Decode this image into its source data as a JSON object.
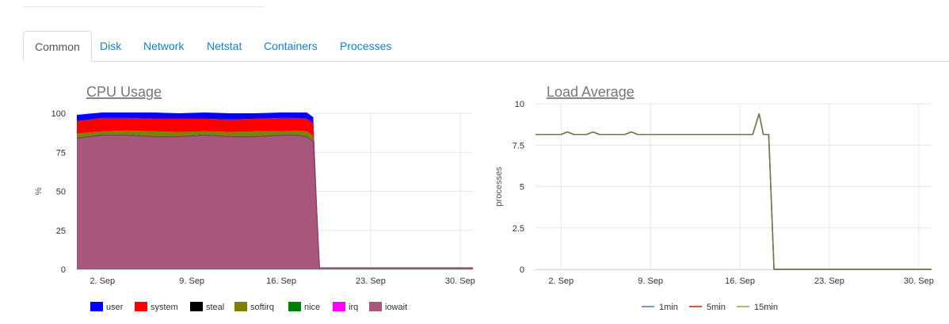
{
  "tabs": [
    {
      "label": "Common",
      "active": true
    },
    {
      "label": "Disk",
      "active": false
    },
    {
      "label": "Network",
      "active": false
    },
    {
      "label": "Netstat",
      "active": false
    },
    {
      "label": "Containers",
      "active": false
    },
    {
      "label": "Processes",
      "active": false
    }
  ],
  "chart_data": [
    {
      "type": "area",
      "stacked": true,
      "title": "CPU Usage",
      "xlabel": "",
      "ylabel": "%",
      "ylim": [
        0,
        100
      ],
      "yticks": [
        0,
        25,
        50,
        75,
        100
      ],
      "xlim": [
        "2023-08-31",
        "2023-10-01"
      ],
      "xticks": [
        {
          "date": "2023-09-02",
          "label": "2. Sep"
        },
        {
          "date": "2023-09-09",
          "label": "9. Sep"
        },
        {
          "date": "2023-09-16",
          "label": "16. Sep"
        },
        {
          "date": "2023-09-23",
          "label": "23. Sep"
        },
        {
          "date": "2023-09-30",
          "label": "30. Sep"
        }
      ],
      "grid": true,
      "legend": "bottom",
      "x": [
        "2023-08-31",
        "2023-09-02",
        "2023-09-04",
        "2023-09-06",
        "2023-09-08",
        "2023-09-10",
        "2023-09-12",
        "2023-09-14",
        "2023-09-16",
        "2023-09-17",
        "2023-09-18",
        "2023-09-18T12:00",
        "2023-09-19",
        "2023-09-22",
        "2023-09-26",
        "2023-09-30",
        "2023-10-01"
      ],
      "series": [
        {
          "name": "iowait",
          "color": "#a8567a",
          "values": [
            84,
            86,
            86,
            85,
            85,
            86,
            85,
            85,
            86,
            86,
            85,
            82,
            1,
            1,
            1,
            1,
            1
          ]
        },
        {
          "name": "irq",
          "color": "#ff00ff",
          "values": [
            0,
            0,
            0,
            0,
            0,
            0,
            0,
            0,
            0,
            0,
            0,
            0,
            0,
            0,
            0,
            0,
            0
          ]
        },
        {
          "name": "nice",
          "color": "#008000",
          "values": [
            0.5,
            0.5,
            0.5,
            0.5,
            0.5,
            0.5,
            0.5,
            0.5,
            0.5,
            0.5,
            0.5,
            0.5,
            0,
            0,
            0,
            0,
            0
          ]
        },
        {
          "name": "softirq",
          "color": "#808000",
          "values": [
            2.5,
            2,
            2.5,
            3,
            2.5,
            2,
            2.5,
            3,
            2,
            2.5,
            3,
            3,
            0,
            0,
            0,
            0,
            0
          ]
        },
        {
          "name": "steal",
          "color": "#000000",
          "values": [
            0,
            0,
            0,
            0,
            0,
            0,
            0,
            0,
            0,
            0,
            0,
            0,
            0,
            0,
            0,
            0,
            0
          ]
        },
        {
          "name": "system",
          "color": "#ff0000",
          "values": [
            8,
            8.5,
            8,
            8,
            8.5,
            8,
            8,
            8,
            8.5,
            8,
            8,
            8,
            0,
            0,
            0,
            0,
            0
          ]
        },
        {
          "name": "user",
          "color": "#0000ff",
          "values": [
            4,
            3.5,
            3.5,
            4,
            3.5,
            4,
            4,
            3.5,
            3.5,
            3.5,
            4,
            4,
            0,
            0,
            0,
            0,
            0
          ]
        }
      ],
      "legend_order": [
        "user",
        "system",
        "steal",
        "softirq",
        "nice",
        "irq",
        "iowait"
      ]
    },
    {
      "type": "line",
      "title": "Load Average",
      "xlabel": "",
      "ylabel": "processes",
      "ylim": [
        0,
        10
      ],
      "yticks": [
        0,
        2.5,
        5,
        7.5,
        10
      ],
      "xlim": [
        "2023-08-31",
        "2023-10-01"
      ],
      "xticks": [
        {
          "date": "2023-09-02",
          "label": "2. Sep"
        },
        {
          "date": "2023-09-09",
          "label": "9. Sep"
        },
        {
          "date": "2023-09-16",
          "label": "16. Sep"
        },
        {
          "date": "2023-09-23",
          "label": "23. Sep"
        },
        {
          "date": "2023-09-30",
          "label": "30. Sep"
        }
      ],
      "grid": true,
      "legend": "bottom",
      "x": [
        "2023-08-31",
        "2023-09-02",
        "2023-09-02T12:00",
        "2023-09-03",
        "2023-09-04",
        "2023-09-04T12:00",
        "2023-09-05",
        "2023-09-07",
        "2023-09-07T12:00",
        "2023-09-08",
        "2023-09-11",
        "2023-09-14",
        "2023-09-16",
        "2023-09-17",
        "2023-09-17T12:00",
        "2023-09-17T20:00",
        "2023-09-18",
        "2023-09-18T06:00",
        "2023-09-18T16:00",
        "2023-09-22",
        "2023-09-26",
        "2023-09-30",
        "2023-10-01"
      ],
      "series": [
        {
          "name": "1min",
          "color": "#7798bf",
          "values": [
            8.15,
            8.15,
            8.3,
            8.15,
            8.15,
            8.3,
            8.15,
            8.15,
            8.3,
            8.15,
            8.15,
            8.15,
            8.15,
            8.15,
            9.4,
            8.15,
            8.15,
            8.15,
            0,
            0,
            0,
            0,
            0
          ]
        },
        {
          "name": "5min",
          "color": "#d9534f",
          "values": [
            8.15,
            8.15,
            8.3,
            8.15,
            8.15,
            8.3,
            8.15,
            8.15,
            8.3,
            8.15,
            8.15,
            8.15,
            8.15,
            8.15,
            9.4,
            8.15,
            8.15,
            8.15,
            0,
            0,
            0,
            0,
            0
          ]
        },
        {
          "name": "15min",
          "color": "#aab87a",
          "values": [
            8.15,
            8.15,
            8.3,
            8.15,
            8.15,
            8.3,
            8.15,
            8.15,
            8.3,
            8.15,
            8.15,
            8.15,
            8.15,
            8.15,
            9.4,
            8.15,
            8.15,
            8.15,
            0,
            0,
            0,
            0,
            0
          ]
        }
      ],
      "line_color": "#6e7a4a"
    }
  ]
}
